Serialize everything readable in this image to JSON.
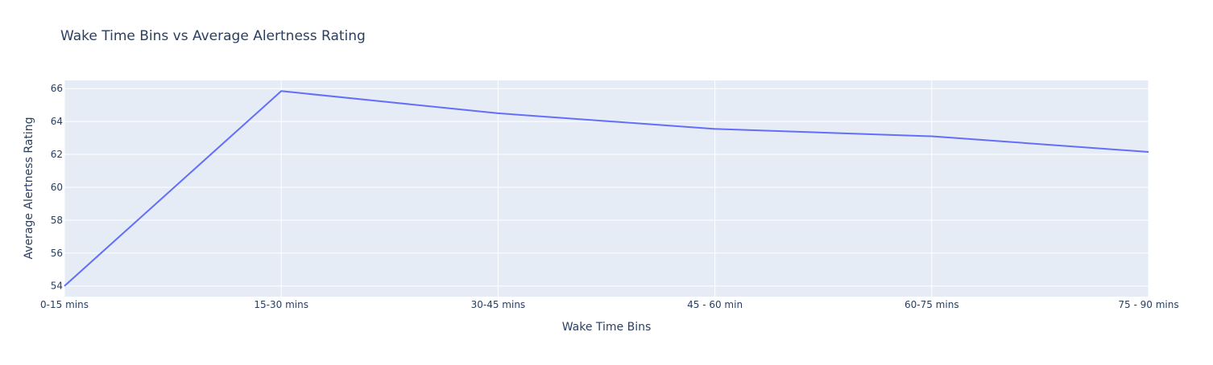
{
  "chart_data": {
    "type": "line",
    "title": "Wake Time Bins vs Average Alertness Rating",
    "xlabel": "Wake Time Bins",
    "ylabel": "Average Alertness Rating",
    "categories": [
      "0-15 mins",
      "15-30 mins",
      "30-45 mins",
      "45 - 60 min",
      "60-75 mins",
      "75 - 90 mins"
    ],
    "series": [
      {
        "values": [
          54.0,
          65.85,
          64.5,
          63.55,
          63.1,
          62.15
        ]
      }
    ],
    "yticks": [
      54,
      56,
      58,
      60,
      62,
      64,
      66
    ],
    "ylim": [
      53.35,
      66.5
    ],
    "grid": true,
    "legend": "none",
    "colors": {
      "plot_background": "#E5ECF6",
      "grid": "#ffffff",
      "line": "#636efa",
      "text": "#2a3f5f"
    }
  }
}
